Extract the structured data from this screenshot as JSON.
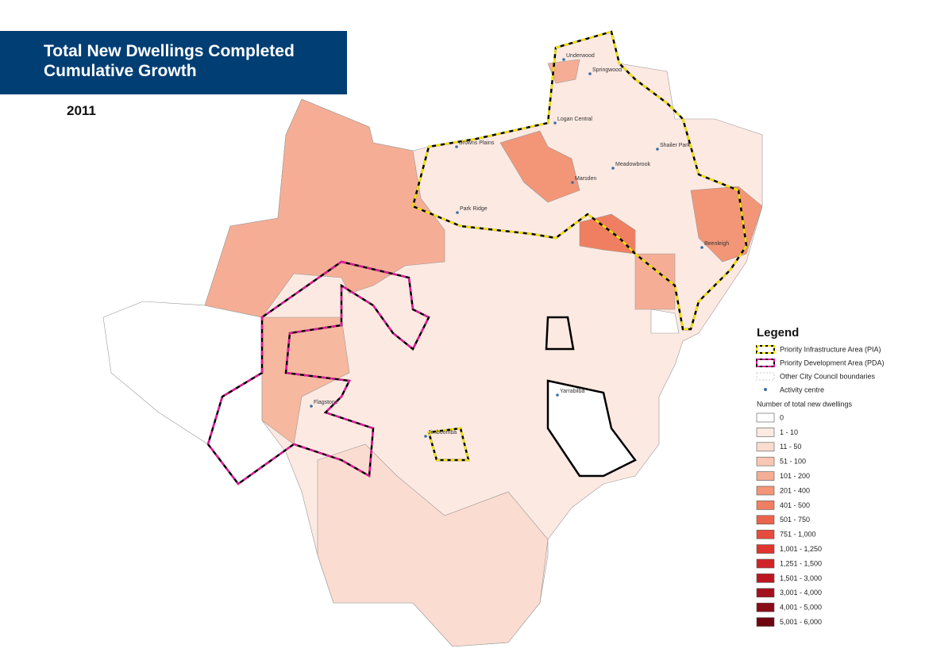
{
  "header": {
    "title_lines": [
      "Total New Dwellings Completed",
      "Cumulative Growth"
    ],
    "year": "2011"
  },
  "places": [
    {
      "label": "Underwood"
    },
    {
      "label": "Springwood"
    },
    {
      "label": "Logan Central"
    },
    {
      "label": "Browns Plains"
    },
    {
      "label": "Shailer Park"
    },
    {
      "label": "Meadowbrook"
    },
    {
      "label": "Marsden"
    },
    {
      "label": "Park Ridge"
    },
    {
      "label": "Beenleigh"
    },
    {
      "label": "Flagstone"
    },
    {
      "label": "Yarrabilba"
    },
    {
      "label": "Jimboomba"
    }
  ],
  "legend": {
    "title": "Legend",
    "items": [
      {
        "label": "Priority Infrastructure Area (PIA)"
      },
      {
        "label": "Priority Development Area (PDA)"
      },
      {
        "label": "Other City Council boundaries"
      },
      {
        "label": "Activity centre"
      }
    ],
    "classes_title": "Number of total new dwellings",
    "classes": [
      {
        "label": "0",
        "color": "#ffffff"
      },
      {
        "label": "1 - 10",
        "color": "#fce9e2"
      },
      {
        "label": "11 - 50",
        "color": "#fbdcd0"
      },
      {
        "label": "51 - 100",
        "color": "#f9c7b3"
      },
      {
        "label": "101 - 200",
        "color": "#f5ae95"
      },
      {
        "label": "201 - 400",
        "color": "#f29677"
      },
      {
        "label": "401 - 500",
        "color": "#ef7f60"
      },
      {
        "label": "501 - 750",
        "color": "#eb634c"
      },
      {
        "label": "751 - 1,000",
        "color": "#e74c3e"
      },
      {
        "label": "1,001 - 1,250",
        "color": "#df352e"
      },
      {
        "label": "1,251 - 1,500",
        "color": "#d02328"
      },
      {
        "label": "1,501 - 3,000",
        "color": "#bc1622"
      },
      {
        "label": "3,001 - 4,000",
        "color": "#a3111d"
      },
      {
        "label": "4,001 - 5,000",
        "color": "#8a0c17"
      },
      {
        "label": "5,001 - 6,000",
        "color": "#6d0610"
      }
    ]
  }
}
